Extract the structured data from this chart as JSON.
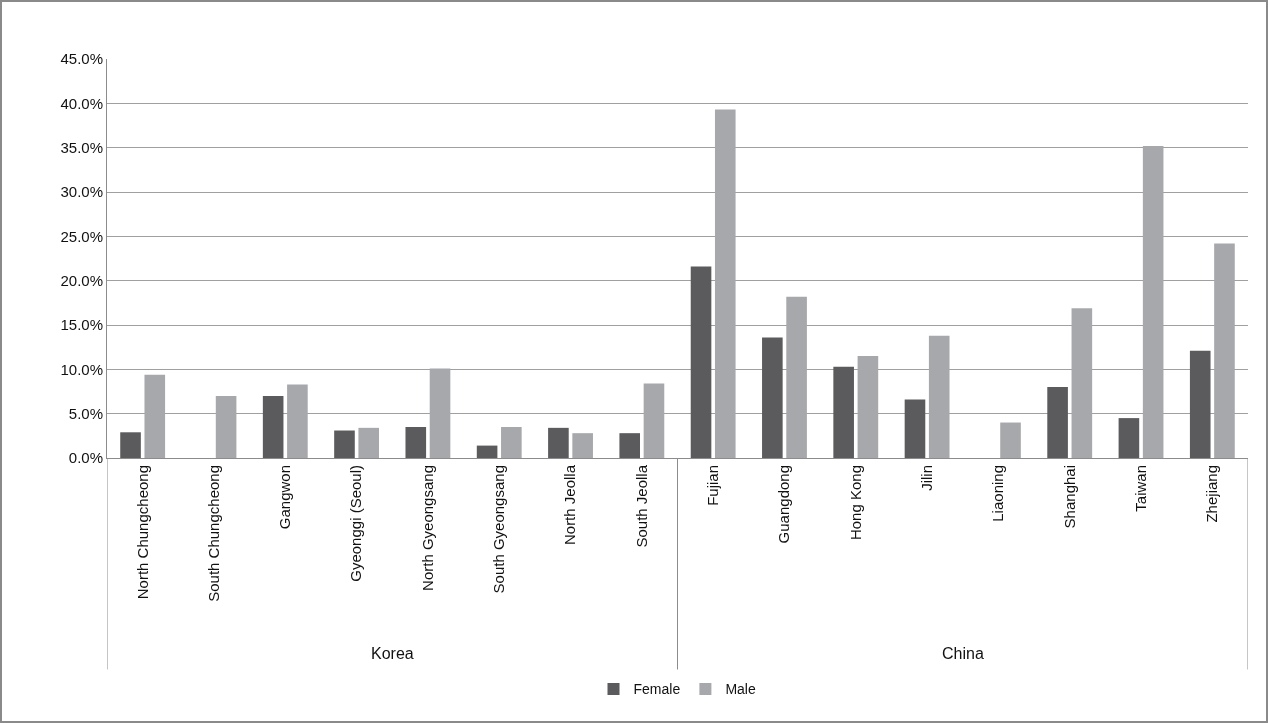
{
  "chart_data": {
    "type": "bar",
    "categories": [
      "North Chungcheong",
      "South Chungcheong",
      "Gangwon",
      "Gyeonggi (Seoul)",
      "North Gyeongsang",
      "South Gyeongsang",
      "North Jeolla",
      "South Jeolla",
      "Fujian",
      "Guangdong",
      "Hong Kong",
      "Jilin",
      "Liaoning",
      "Shanghai",
      "Taiwan",
      "Zhejiang"
    ],
    "series": [
      {
        "name": "Female",
        "color": "#5b5b5d",
        "values": [
          2.9,
          null,
          7.0,
          3.1,
          3.5,
          1.4,
          3.4,
          2.8,
          21.6,
          13.6,
          10.3,
          6.6,
          null,
          8.0,
          4.5,
          12.1
        ]
      },
      {
        "name": "Male",
        "color": "#a7a8ab",
        "values": [
          9.4,
          7.0,
          8.3,
          3.4,
          10.1,
          3.5,
          2.8,
          8.4,
          39.3,
          18.2,
          11.5,
          13.8,
          4.0,
          16.9,
          35.2,
          24.2
        ]
      }
    ],
    "annotations": [
      "Korea",
      "China"
    ],
    "ylim": [
      0,
      45
    ],
    "yticks": [
      {
        "value": 0,
        "label": "0.0%"
      },
      {
        "value": 5,
        "label": "5.0%"
      },
      {
        "value": 10,
        "label": "10.0%"
      },
      {
        "value": 15,
        "label": "15.0%"
      },
      {
        "value": 20,
        "label": "20.0%"
      },
      {
        "value": 25,
        "label": "25.0%"
      },
      {
        "value": 30,
        "label": "30.0%"
      },
      {
        "value": 35,
        "label": "35.0%"
      },
      {
        "value": 40,
        "label": "40.0%"
      },
      {
        "value": 45,
        "label": "45.0%"
      }
    ],
    "grid": "y",
    "legend": "bottom"
  }
}
